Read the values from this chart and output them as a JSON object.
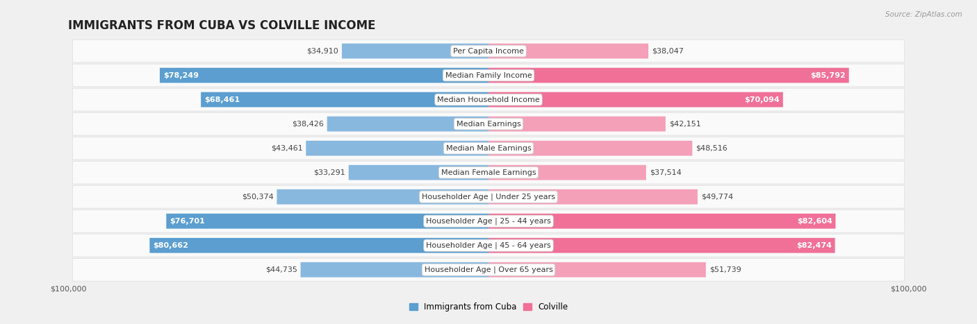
{
  "title": "IMMIGRANTS FROM CUBA VS COLVILLE INCOME",
  "source": "Source: ZipAtlas.com",
  "categories": [
    "Per Capita Income",
    "Median Family Income",
    "Median Household Income",
    "Median Earnings",
    "Median Male Earnings",
    "Median Female Earnings",
    "Householder Age | Under 25 years",
    "Householder Age | 25 - 44 years",
    "Householder Age | 45 - 64 years",
    "Householder Age | Over 65 years"
  ],
  "cuba_values": [
    34910,
    78249,
    68461,
    38426,
    43461,
    33291,
    50374,
    76701,
    80662,
    44735
  ],
  "colville_values": [
    38047,
    85792,
    70094,
    42151,
    48516,
    37514,
    49774,
    82604,
    82474,
    51739
  ],
  "cuba_labels": [
    "$34,910",
    "$78,249",
    "$68,461",
    "$38,426",
    "$43,461",
    "$33,291",
    "$50,374",
    "$76,701",
    "$80,662",
    "$44,735"
  ],
  "colville_labels": [
    "$38,047",
    "$85,792",
    "$70,094",
    "$42,151",
    "$48,516",
    "$37,514",
    "$49,774",
    "$82,604",
    "$82,474",
    "$51,739"
  ],
  "cuba_color": "#89b8df",
  "colville_color": "#f4a0b8",
  "cuba_color_strong": "#5b9ecf",
  "colville_color_strong": "#f07097",
  "max_value": 100000,
  "bar_height": 0.62,
  "bg_color": "#f0f0f0",
  "row_bg": "#fafafa",
  "row_border": "#dddddd",
  "title_fontsize": 12,
  "label_fontsize": 8,
  "category_fontsize": 8,
  "legend_fontsize": 8.5,
  "axis_fontsize": 8,
  "cuba_text_threshold": 58000,
  "colville_text_threshold": 58000
}
